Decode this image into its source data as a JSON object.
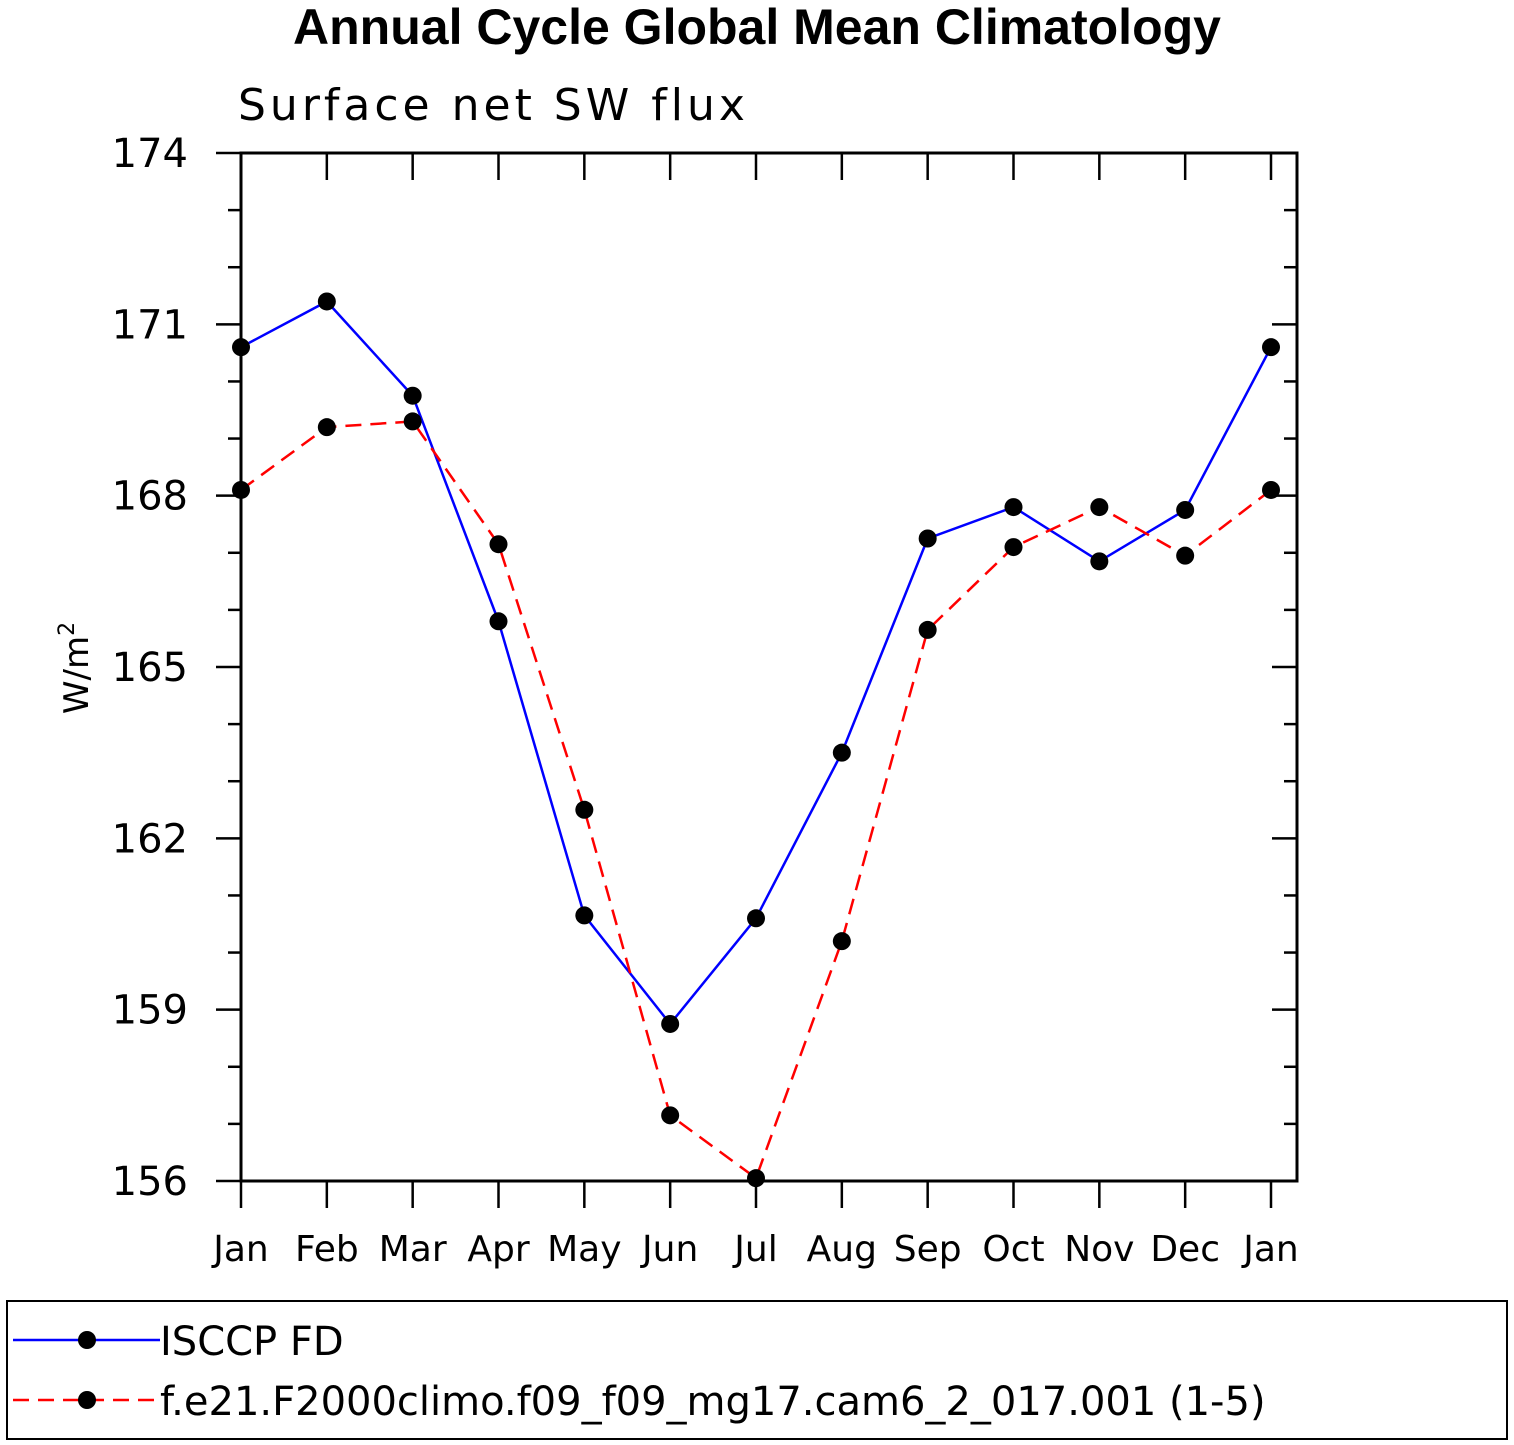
{
  "chart_data": {
    "type": "line",
    "title": "Annual Cycle Global Mean Climatology",
    "subtitle": "Surface net SW flux",
    "xlabel": "",
    "ylabel": "W/m",
    "ylabel_superscript": "2",
    "categories": [
      "Jan",
      "Feb",
      "Mar",
      "Apr",
      "May",
      "Jun",
      "Jul",
      "Aug",
      "Sep",
      "Oct",
      "Nov",
      "Dec",
      "Jan"
    ],
    "ylim": [
      156,
      174
    ],
    "yticks": [
      156,
      159,
      162,
      165,
      168,
      171,
      174
    ],
    "yminor_step": 1,
    "grid": false,
    "legend_position": "bottom",
    "series": [
      {
        "name": "ISCCP FD",
        "color": "#0000ff",
        "dash": "solid",
        "values": [
          170.6,
          171.4,
          169.75,
          165.8,
          160.65,
          158.75,
          160.6,
          163.5,
          167.25,
          167.8,
          166.85,
          167.75,
          170.6
        ]
      },
      {
        "name": "f.e21.F2000climo.f09_f09_mg17.cam6_2_017.001 (1-5)",
        "color": "#ff0000",
        "dash": "dashed",
        "values": [
          168.1,
          169.2,
          169.3,
          167.15,
          162.5,
          157.15,
          156.05,
          160.2,
          165.65,
          167.1,
          167.8,
          166.95,
          168.1
        ]
      }
    ],
    "marker_color": "#000000"
  }
}
